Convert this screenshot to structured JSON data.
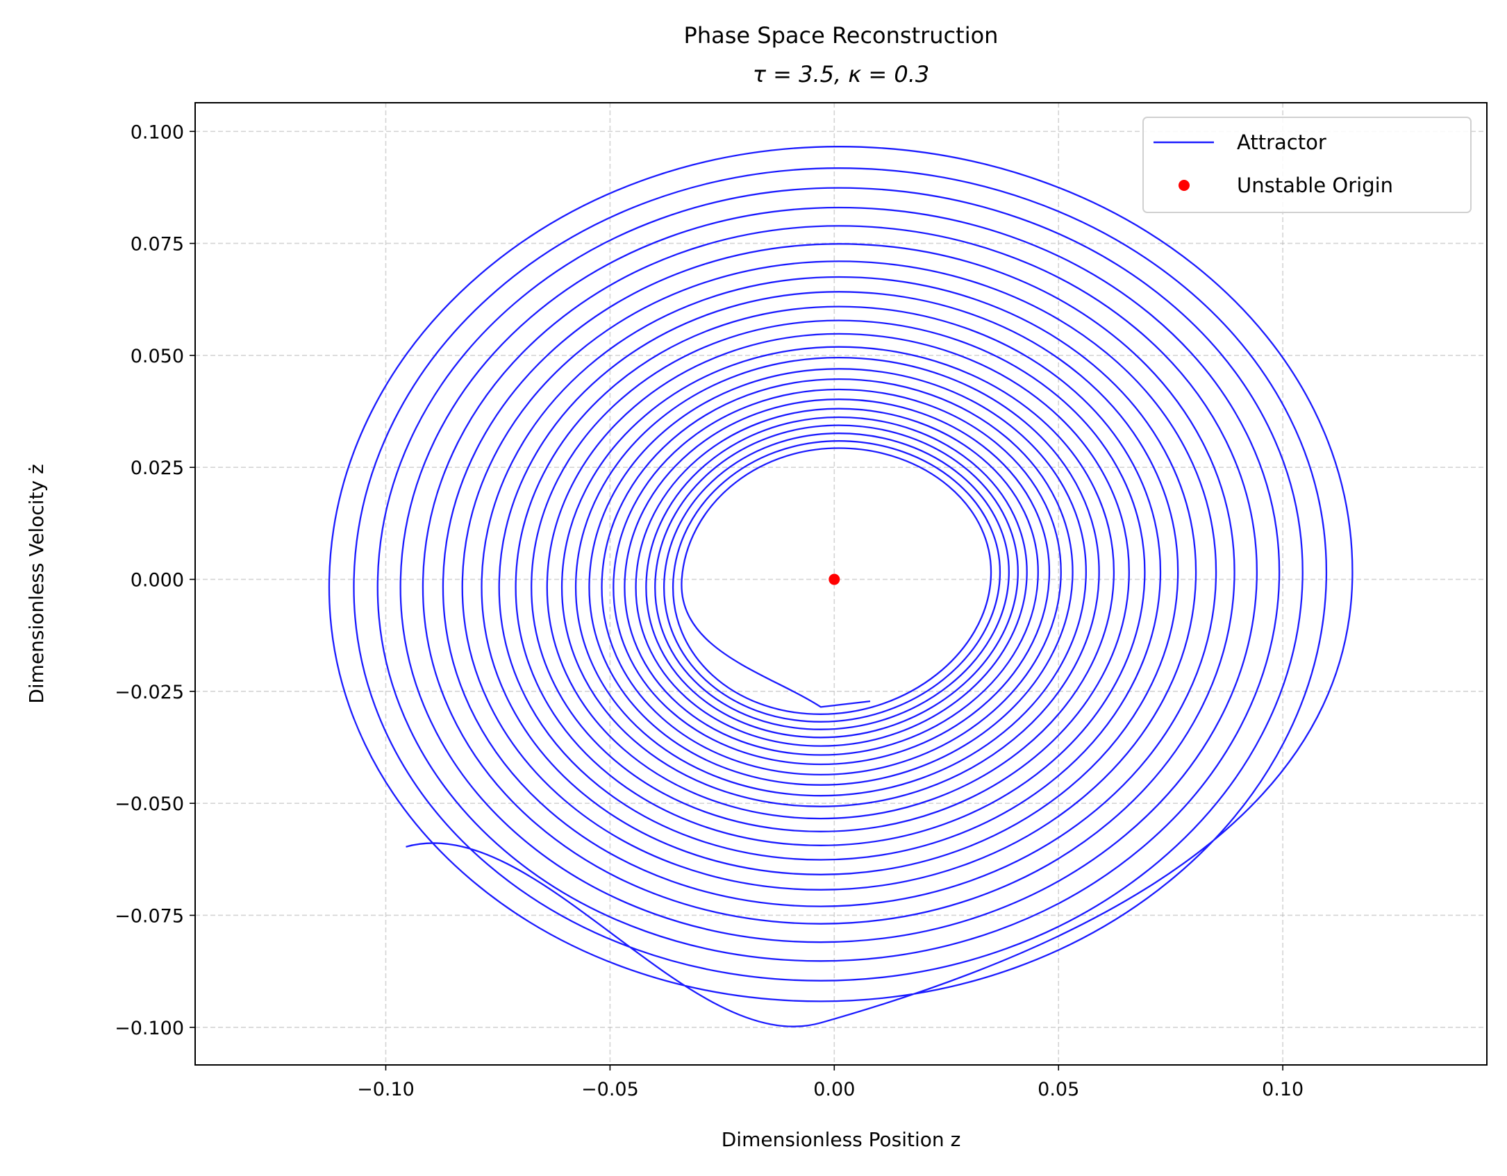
{
  "chart_data": {
    "type": "line",
    "title": "Phase Space Reconstruction",
    "subtitle": "τ = 3.5, κ = 0.3",
    "xlabel": "Dimensionless Position z",
    "ylabel": "Dimensionless Velocity ż",
    "xlim": [
      -0.1425,
      0.1455
    ],
    "ylim": [
      -0.1084,
      0.1064
    ],
    "grid": true,
    "legend_placement": "top-right",
    "x_ticks": [
      -0.1,
      -0.05,
      0.0,
      0.05,
      0.1
    ],
    "x_tick_labels": [
      "−0.10",
      "−0.05",
      "0.00",
      "0.05",
      "0.10"
    ],
    "y_ticks": [
      0.1,
      0.075,
      0.05,
      0.025,
      0.0,
      -0.025,
      -0.05,
      -0.075,
      -0.1
    ],
    "y_tick_labels": [
      "0.100",
      "0.075",
      "0.050",
      "0.025",
      "0.000",
      "−0.025",
      "−0.050",
      "−0.075",
      "−0.100"
    ],
    "series": [
      {
        "name": "Attractor",
        "type": "line",
        "color": "#1a1aff",
        "x": [
          0.008,
          -0.003,
          -0.034,
          0.001,
          0.0349,
          -0.003,
          -0.0359,
          0.001,
          0.0369,
          -0.003,
          -0.0379,
          0.001,
          0.0389,
          -0.003,
          -0.0399,
          0.001,
          0.0409,
          -0.003,
          -0.0419,
          0.001,
          0.0429,
          -0.003,
          -0.0442,
          0.001,
          0.0454,
          -0.003,
          -0.0467,
          0.001,
          0.0479,
          -0.003,
          -0.0492,
          0.001,
          0.0505,
          -0.003,
          -0.0518,
          0.001,
          0.0531,
          -0.003,
          -0.0546,
          0.001,
          0.0561,
          -0.003,
          -0.0576,
          0.001,
          0.059,
          -0.003,
          -0.0607,
          0.001,
          0.0623,
          -0.003,
          -0.064,
          0.001,
          0.0657,
          -0.003,
          -0.0675,
          0.001,
          0.0692,
          -0.003,
          -0.071,
          0.001,
          0.0727,
          -0.003,
          -0.0747,
          0.001,
          0.0766,
          -0.003,
          -0.0786,
          0.001,
          0.0806,
          -0.003,
          -0.0829,
          0.001,
          0.0851,
          -0.003,
          -0.0872,
          0.001,
          0.0892,
          -0.003,
          -0.0917,
          0.001,
          0.0942,
          -0.003,
          -0.0967,
          0.001,
          0.0992,
          -0.003,
          -0.1018,
          0.001,
          0.1044,
          -0.003,
          -0.1071,
          0.001,
          0.1097,
          -0.003,
          -0.1126,
          0.001,
          0.1155,
          -0.003,
          -0.0955
        ],
        "y": [
          -0.0272,
          -0.0285,
          0,
          0.0293,
          0,
          -0.0301,
          0,
          0.0309,
          0,
          -0.0318,
          0,
          0.0326,
          0,
          -0.0335,
          0,
          0.0344,
          0,
          -0.0353,
          0,
          0.0362,
          0,
          -0.0372,
          0,
          0.0381,
          0,
          -0.0392,
          0,
          0.0402,
          0,
          -0.0413,
          0,
          0.0424,
          0,
          -0.0436,
          0,
          0.0447,
          0,
          -0.0459,
          0,
          0.047,
          0,
          -0.0483,
          0,
          0.0495,
          0,
          -0.0507,
          0,
          0.0519,
          0,
          -0.0534,
          0,
          0.0548,
          0,
          -0.0563,
          0,
          0.0578,
          0,
          -0.0594,
          0,
          0.0609,
          0,
          -0.0626,
          0,
          0.0642,
          0,
          -0.0659,
          0,
          0.0675,
          0,
          -0.0693,
          0,
          0.071,
          0,
          -0.073,
          0,
          0.0749,
          0,
          -0.0769,
          0,
          0.0789,
          0,
          -0.081,
          0,
          0.083,
          0,
          -0.0852,
          0,
          0.0874,
          0,
          -0.0896,
          0,
          0.0918,
          0,
          -0.0942,
          0,
          0.0966,
          0,
          -0.099,
          -0.0597
        ]
      },
      {
        "name": "Unstable Origin",
        "type": "scatter",
        "color": "#ff0000",
        "x": [
          0.0
        ],
        "y": [
          0.0
        ]
      }
    ]
  }
}
